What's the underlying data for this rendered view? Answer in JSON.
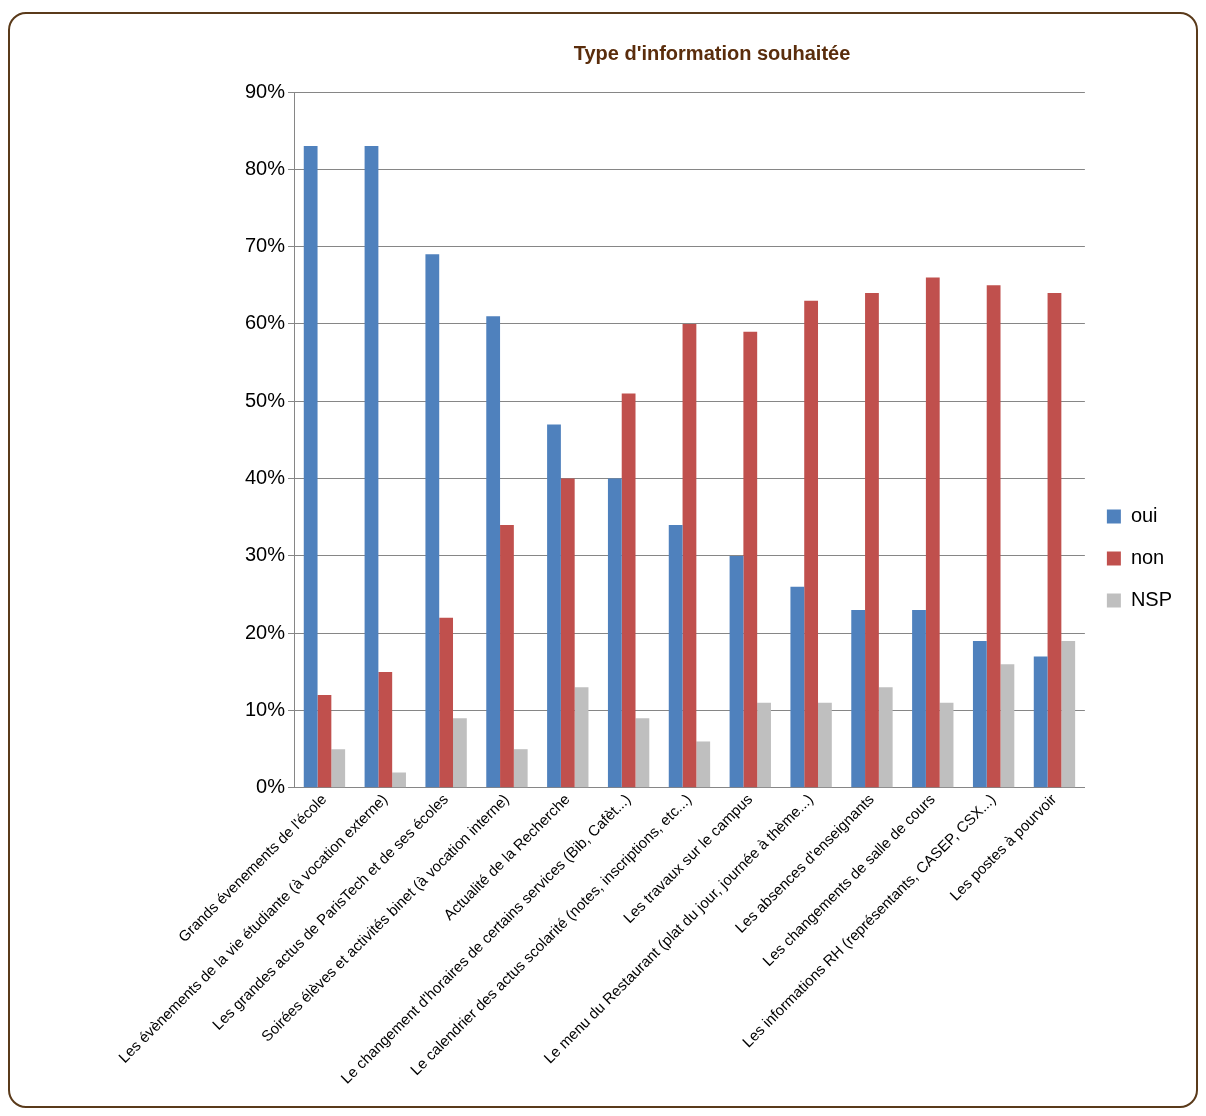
{
  "chart_data": {
    "type": "bar",
    "title": "Type d'information souhaitée",
    "categories": [
      "Grands évenements de l'école",
      "Les évènements de la vie étudiante (à vocation externe)",
      "Les grandes actus de ParisTech et de ses écoles",
      "Soirées élèves et activités binet (à vocation interne)",
      "Actualité de la Recherche",
      "Le changement d'horaires de certains services (Bib, Cafèt...)",
      "Le calendrier des actus scolarité (notes, inscriptions, etc...)",
      "Les travaux sur le campus",
      "Le menu du Restaurant (plat du jour, journée à thème...)",
      "Les absences d'enseignants",
      "Les changements de salle de cours",
      "Les informations RH (représentants, CASEP, CSX...)",
      "Les postes à pourvoir"
    ],
    "series": [
      {
        "name": "oui",
        "color": "#4f81bd",
        "values": [
          83,
          83,
          69,
          61,
          47,
          40,
          34,
          30,
          26,
          23,
          23,
          19,
          17
        ]
      },
      {
        "name": "non",
        "color": "#c0504d",
        "values": [
          12,
          15,
          22,
          34,
          40,
          51,
          60,
          59,
          63,
          64,
          66,
          65,
          64
        ]
      },
      {
        "name": "NSP",
        "color": "#bfbfbf",
        "values": [
          5,
          2,
          9,
          5,
          13,
          9,
          6,
          11,
          11,
          13,
          11,
          16,
          19
        ]
      }
    ],
    "ylim": [
      0,
      90
    ],
    "yticks": [
      {
        "value": 0,
        "label": "0%"
      },
      {
        "value": 10,
        "label": "10%"
      },
      {
        "value": 20,
        "label": "20%"
      },
      {
        "value": 30,
        "label": "30%"
      },
      {
        "value": 40,
        "label": "40%"
      },
      {
        "value": 50,
        "label": "50%"
      },
      {
        "value": 60,
        "label": "60%"
      },
      {
        "value": 70,
        "label": "70%"
      },
      {
        "value": 80,
        "label": "80%"
      },
      {
        "value": 90,
        "label": "90%"
      }
    ],
    "grid": "y",
    "legend": "right"
  }
}
